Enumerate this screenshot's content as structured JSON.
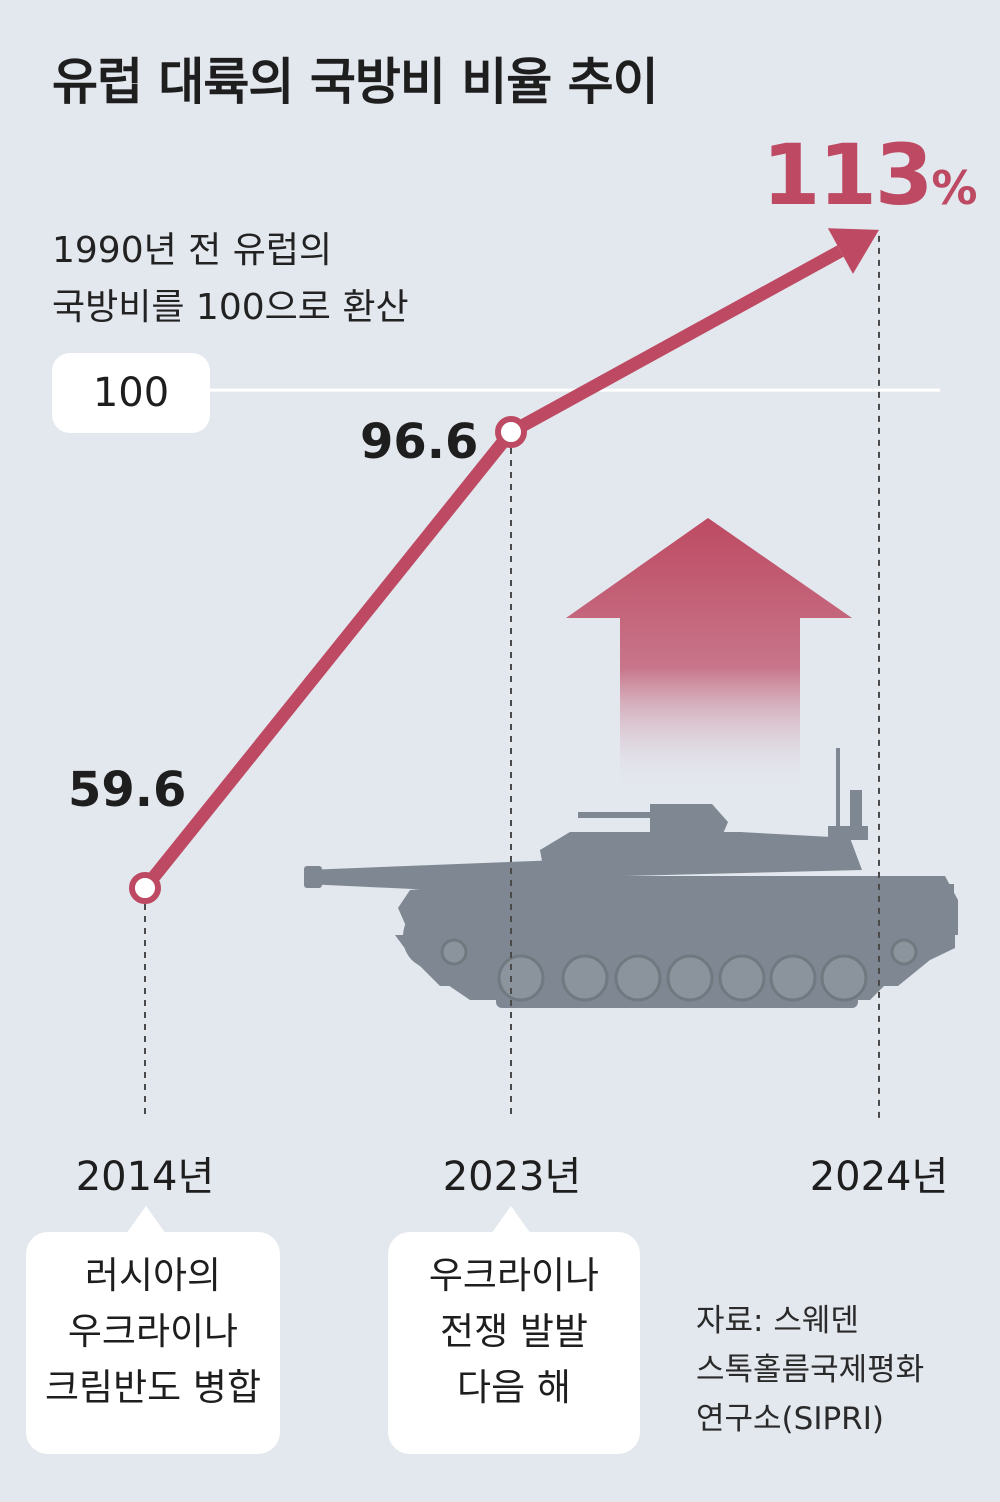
{
  "title": "유럽 대륙의 국방비 비율 추이",
  "note": {
    "line1": "1990년 전 유럽의",
    "line2": "국방비를 100으로 환산"
  },
  "reference": {
    "label": "100"
  },
  "final_value": {
    "number": "113",
    "unit": "%"
  },
  "events": [
    {
      "lines": [
        "러시아의",
        "우크라이나",
        "크림반도 병합"
      ]
    },
    {
      "lines": [
        "우크라이나",
        "전쟁 발발",
        "다음 해"
      ]
    }
  ],
  "source": {
    "lines": [
      "자료: 스웨덴",
      "스톡홀름국제평화",
      "연구소(SIPRI)"
    ]
  },
  "colors": {
    "line": "#bd4a62",
    "background": "#e3e7ee",
    "tank": "#7f8892"
  },
  "icons": [
    "tank-illustration",
    "up-arrow-icon"
  ],
  "chart_data": {
    "type": "line",
    "title": "유럽 대륙의 국방비 비율 추이",
    "categories": [
      "2014년",
      "2023년",
      "2024년"
    ],
    "x": [
      2014,
      2023,
      2024
    ],
    "values": [
      59.6,
      96.6,
      113
    ],
    "value_labels": [
      "59.6",
      "96.6",
      "113"
    ],
    "reference_line": 100,
    "xlabel": "",
    "ylabel": "",
    "grid": false,
    "legend": "none"
  }
}
